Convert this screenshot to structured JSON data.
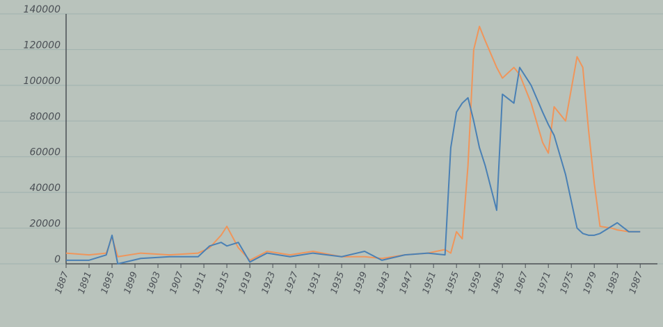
{
  "chart_data": {
    "type": "line",
    "x": [
      1887,
      1891,
      1894,
      1895,
      1896,
      1900,
      1905,
      1910,
      1912,
      1914,
      1915,
      1917,
      1919,
      1922,
      1926,
      1930,
      1935,
      1939,
      1942,
      1946,
      1950,
      1953,
      1954,
      1955,
      1956,
      1957,
      1958,
      1959,
      1960,
      1962,
      1963,
      1965,
      1966,
      1968,
      1970,
      1971,
      1972,
      1974,
      1976,
      1977,
      1978,
      1979,
      1980,
      1982,
      1983,
      1985,
      1987
    ],
    "series": [
      {
        "color": "#f0955a",
        "values": [
          6000,
          5000,
          6000,
          15000,
          4000,
          6000,
          5000,
          6000,
          9000,
          16000,
          21000,
          9000,
          2000,
          7000,
          5000,
          7000,
          4000,
          4000,
          3000,
          5000,
          6000,
          8000,
          6000,
          18000,
          14000,
          55000,
          120000,
          133000,
          125000,
          110000,
          104000,
          110000,
          106000,
          90000,
          68000,
          62000,
          88000,
          80000,
          116000,
          110000,
          75000,
          45000,
          21000,
          20000,
          19000,
          18000,
          18000
        ]
      },
      {
        "color": "#4a80b4",
        "values": [
          2000,
          2000,
          5000,
          16000,
          0,
          3000,
          4000,
          4000,
          10000,
          12000,
          10000,
          12000,
          1000,
          6000,
          4000,
          6000,
          4000,
          7000,
          2000,
          5000,
          6000,
          5000,
          65000,
          85000,
          90000,
          93000,
          80000,
          65000,
          55000,
          30000,
          95000,
          90000,
          110000,
          100000,
          85000,
          78000,
          72000,
          50000,
          20000,
          17000,
          16000,
          16000,
          17000,
          21000,
          23000,
          18000,
          18000
        ]
      }
    ],
    "xlim": [
      1887,
      1990
    ],
    "xticks": [
      1887,
      1891,
      1895,
      1899,
      1903,
      1907,
      1911,
      1915,
      1919,
      1923,
      1927,
      1931,
      1935,
      1939,
      1943,
      1947,
      1951,
      1955,
      1959,
      1963,
      1967,
      1971,
      1975,
      1979,
      1983,
      1987
    ],
    "ylim": [
      0,
      140000
    ],
    "yticks": [
      0,
      20000,
      40000,
      60000,
      80000,
      100000,
      120000,
      140000
    ],
    "grid": true
  }
}
